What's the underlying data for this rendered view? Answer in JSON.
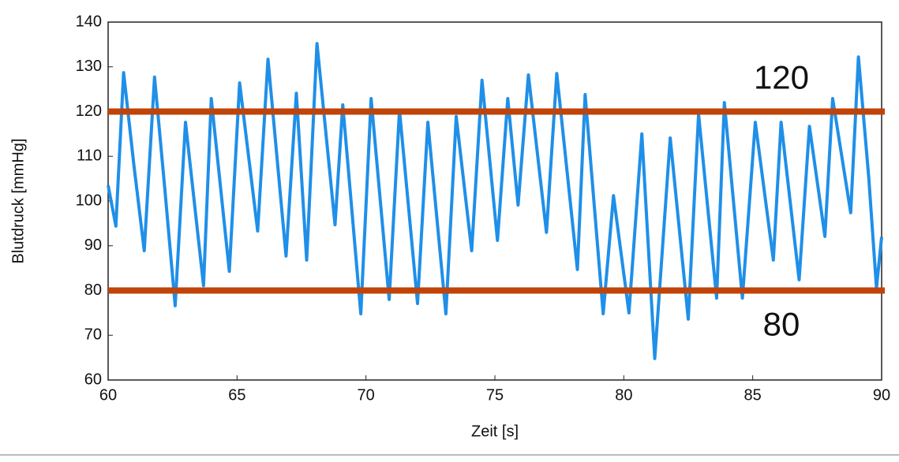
{
  "chart_data": {
    "type": "line",
    "xlabel": "Zeit [s]",
    "ylabel": "Blutdruck [mmHg]",
    "xlim": [
      60,
      90
    ],
    "xticks": [
      60,
      65,
      70,
      75,
      80,
      85,
      90
    ],
    "ylim": [
      60,
      140
    ],
    "yticks": [
      60,
      70,
      80,
      90,
      100,
      110,
      120,
      130,
      140
    ],
    "grid": false,
    "reference_lines": [
      120,
      80
    ],
    "reference_color": "#c0440a",
    "series": [
      {
        "color": "#1f8fe8",
        "x": [
          60.0,
          60.3,
          60.6,
          61.0,
          61.4,
          61.8,
          62.2,
          62.6,
          63.0,
          63.7,
          64.0,
          64.7,
          65.1,
          65.8,
          66.2,
          66.9,
          67.3,
          67.7,
          68.1,
          68.8,
          69.1,
          69.8,
          70.2,
          70.9,
          71.3,
          72.0,
          72.4,
          73.1,
          73.5,
          74.1,
          74.5,
          75.1,
          75.5,
          75.9,
          76.3,
          77.0,
          77.4,
          78.2,
          78.5,
          79.2,
          79.6,
          80.2,
          80.7,
          81.2,
          81.8,
          82.5,
          82.9,
          83.6,
          83.9,
          84.6,
          85.1,
          85.8,
          86.1,
          86.8,
          87.2,
          87.8,
          88.1,
          88.8,
          89.1,
          89.5,
          89.8,
          90.0
        ],
        "values": [
          103.5,
          94.4,
          128.7,
          108.0,
          88.9,
          127.7,
          102.6,
          76.6,
          117.6,
          81.1,
          122.9,
          84.3,
          126.4,
          93.3,
          131.7,
          87.7,
          124.1,
          86.8,
          135.2,
          94.7,
          121.5,
          74.8,
          122.9,
          78.0,
          120.3,
          77.1,
          117.6,
          74.8,
          118.9,
          88.9,
          127.0,
          91.2,
          122.9,
          99.1,
          128.2,
          93.0,
          128.5,
          84.7,
          123.8,
          74.8,
          101.2,
          75.0,
          115.0,
          64.8,
          114.1,
          73.6,
          119.4,
          78.3,
          122.0,
          78.3,
          117.6,
          86.8,
          117.6,
          82.4,
          116.7,
          92.1,
          122.9,
          97.4,
          132.2,
          105.3,
          80.6,
          92.0
        ]
      }
    ]
  }
}
